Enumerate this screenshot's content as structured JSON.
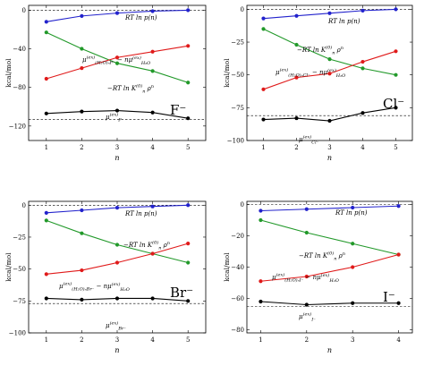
{
  "chart_data": [
    {
      "type": "line",
      "panel": "F",
      "ion_label": "F⁻",
      "xlabel": "n",
      "ylabel": "kcal/mol",
      "xlim": [
        0.5,
        5.5
      ],
      "ylim": [
        -135,
        5
      ],
      "xticks": [
        1,
        2,
        3,
        4,
        5
      ],
      "yticks": [
        0,
        -40,
        -80,
        -120
      ],
      "x": [
        1,
        2,
        3,
        4,
        5
      ],
      "hlines": [
        0,
        -113
      ],
      "grid": false,
      "series": [
        {
          "name": "RT ln p(n)",
          "color": "#2222cc",
          "values": [
            -12,
            -6,
            -3,
            -1,
            0
          ]
        },
        {
          "name": "−RT ln K_n^(0) ρ^n",
          "color": "#22992a",
          "values": [
            -23,
            -40,
            -55,
            -63,
            -75
          ]
        },
        {
          "name": "μ^(ex)_(H2O)nF⁻ − n μ^(ex)_H2O",
          "color": "#e01a1a",
          "values": [
            -71,
            -60,
            -49,
            -43,
            -37
          ]
        },
        {
          "name": "μ^(ex)_F⁻",
          "color": "#000000",
          "values": [
            -107,
            -105,
            -104,
            -106,
            -112
          ]
        }
      ],
      "annotations": [
        "RT ln p(n)",
        "μ(ex)(H2O)nF− − nμ(ex)H2O",
        "−RT ln K(0)n ρn",
        "μ(ex)F−"
      ]
    },
    {
      "type": "line",
      "panel": "Cl",
      "ion_label": "Cl⁻",
      "xlabel": "n",
      "ylabel": "kcal/mol",
      "xlim": [
        0.5,
        5.5
      ],
      "ylim": [
        -100,
        3
      ],
      "xticks": [
        1,
        2,
        3,
        4,
        5
      ],
      "yticks": [
        0,
        -25,
        -50,
        -75,
        -100
      ],
      "x": [
        1,
        2,
        3,
        4,
        5
      ],
      "hlines": [
        0,
        -81
      ],
      "grid": false,
      "series": [
        {
          "name": "RT ln p(n)",
          "color": "#2222cc",
          "values": [
            -7,
            -5,
            -3,
            -1,
            0
          ]
        },
        {
          "name": "−RT ln K_n^(0) ρ^n",
          "color": "#22992a",
          "values": [
            -15,
            -27,
            -38,
            -45,
            -50
          ]
        },
        {
          "name": "μ^(ex)_(H2O)nCl⁻ − n μ^(ex)_H2O",
          "color": "#e01a1a",
          "values": [
            -61,
            -52,
            -49,
            -40,
            -32
          ]
        },
        {
          "name": "μ^(ex)_Cl⁻",
          "color": "#000000",
          "values": [
            -84,
            -83,
            -85,
            -79,
            -75
          ]
        }
      ],
      "annotations": [
        "RT ln p(n)",
        "−RT ln K(0)n ρn",
        "μ(ex)(H2O)nCl− − nμ(ex)H2O",
        "μ(ex)Cl−"
      ]
    },
    {
      "type": "line",
      "panel": "Br",
      "ion_label": "Br⁻",
      "xlabel": "n",
      "ylabel": "kcal/mol",
      "xlim": [
        0.5,
        5.5
      ],
      "ylim": [
        -100,
        3
      ],
      "xticks": [
        1,
        2,
        3,
        4,
        5
      ],
      "yticks": [
        0,
        -25,
        -50,
        -75,
        -100
      ],
      "x": [
        1,
        2,
        3,
        4,
        5
      ],
      "hlines": [
        0,
        -77
      ],
      "grid": false,
      "series": [
        {
          "name": "RT ln p(n)",
          "color": "#2222cc",
          "values": [
            -6,
            -4,
            -2,
            -1,
            0
          ]
        },
        {
          "name": "−RT ln K_n^(0) ρ^n",
          "color": "#22992a",
          "values": [
            -12,
            -22,
            -31,
            -38,
            -45
          ]
        },
        {
          "name": "μ^(ex)_(H2O)nBr⁻ − n μ^(ex)_H2O",
          "color": "#e01a1a",
          "values": [
            -54,
            -51,
            -45,
            -38,
            -30
          ]
        },
        {
          "name": "μ^(ex)_Br⁻",
          "color": "#000000",
          "values": [
            -73,
            -74,
            -73,
            -73,
            -75
          ]
        }
      ],
      "annotations": [
        "RT ln p(n)",
        "−RT ln K(0)n ρn",
        "μ(ex)(H2O)nBr− − nμ(ex)H2O",
        "μ(ex)Br−"
      ]
    },
    {
      "type": "line",
      "panel": "I",
      "ion_label": "I⁻",
      "xlabel": "n",
      "ylabel": "kcal/mol",
      "xlim": [
        0.7,
        4.3
      ],
      "ylim": [
        -82,
        2
      ],
      "xticks": [
        1,
        2,
        3,
        4
      ],
      "yticks": [
        0,
        -20,
        -40,
        -60,
        -80
      ],
      "x": [
        1,
        2,
        3,
        4
      ],
      "hlines": [
        0,
        -65
      ],
      "grid": false,
      "series": [
        {
          "name": "RT ln p(n)",
          "color": "#2222cc",
          "values": [
            -4,
            -3,
            -2,
            -1
          ]
        },
        {
          "name": "−RT ln K_n^(0) ρ^n",
          "color": "#22992a",
          "values": [
            -10,
            -18,
            -25,
            -32
          ]
        },
        {
          "name": "μ^(ex)_(H2O)nI⁻ − n μ^(ex)_H2O",
          "color": "#e01a1a",
          "values": [
            -49,
            -46,
            -40,
            -32
          ]
        },
        {
          "name": "μ^(ex)_I⁻",
          "color": "#000000",
          "values": [
            -62,
            -64,
            -63,
            -63
          ]
        }
      ],
      "annotations": [
        "RT ln p(n)",
        "−RT ln K(0)n ρn",
        "μ(ex)(H2O)nI− − nμ(ex)H2O",
        "μ(ex)I−"
      ]
    }
  ]
}
